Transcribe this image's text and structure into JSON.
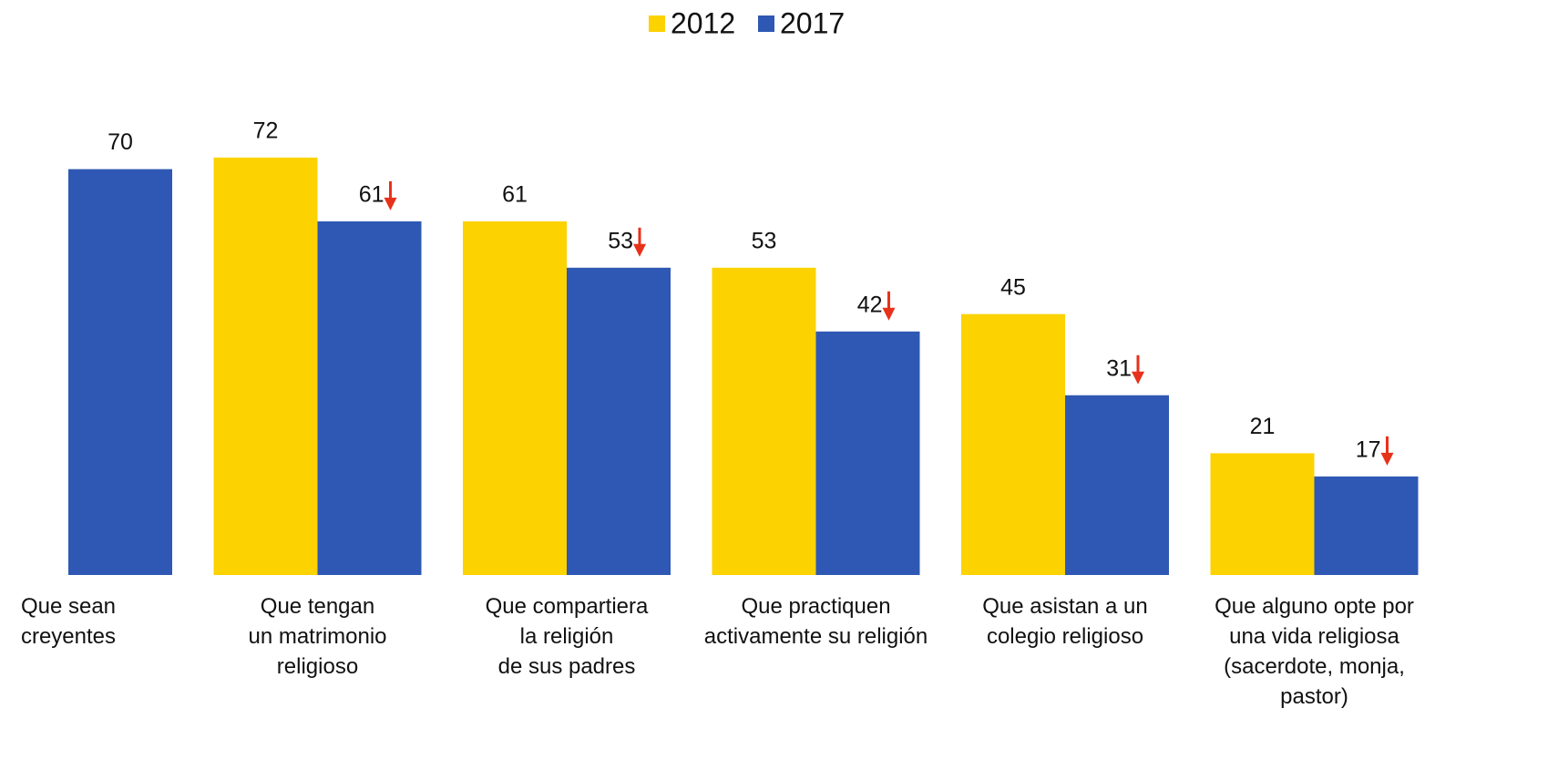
{
  "chart_data": {
    "type": "bar",
    "categories": [
      "Que sean\ncreyentes",
      "Que tengan\nun matrimonio\nreligioso",
      "Que compartiera\nla religión\nde sus padres",
      "Que practiquen\nactivamente su religión",
      "Que asistan a un\ncolegio religioso",
      "Que alguno opte por\nuna vida religiosa\n(sacerdote, monja,\npastor)"
    ],
    "series": [
      {
        "name": "2012",
        "color": "#fcd200",
        "values": [
          null,
          72,
          61,
          53,
          45,
          21
        ]
      },
      {
        "name": "2017",
        "color": "#2e58b3",
        "values": [
          70,
          61,
          53,
          42,
          31,
          17
        ]
      }
    ],
    "ylim": [
      0,
      80
    ],
    "legend": "top"
  }
}
